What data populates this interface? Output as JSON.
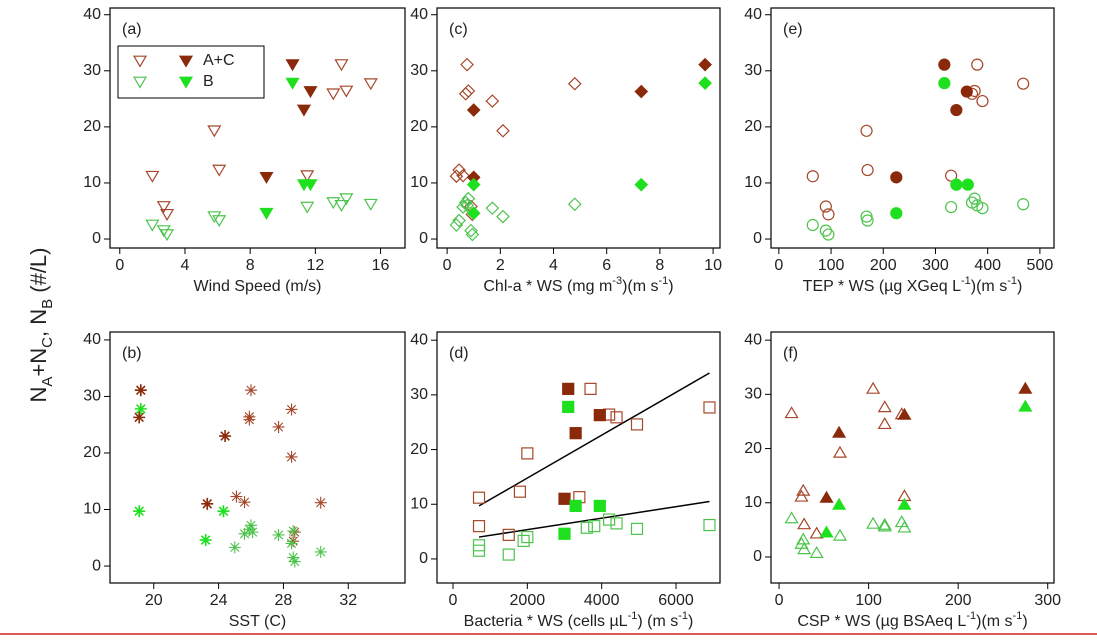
{
  "y_axis_label_parts": [
    {
      "text": "N"
    },
    {
      "text": "A",
      "sub": true
    },
    {
      "text": "+N"
    },
    {
      "text": "C",
      "sub": true
    },
    {
      "text": ",  N"
    },
    {
      "text": "B",
      "sub": true
    },
    {
      "text": " (#/L)"
    }
  ],
  "chart_data": [
    {
      "type": "scatter",
      "marker": "triangle-down",
      "panel_label": "(a)",
      "xlabel": [
        {
          "text": "Wind Speed (m/s)"
        }
      ],
      "xlim": [
        -0.6,
        17.5
      ],
      "xticks": [
        0,
        4,
        8,
        12,
        16
      ],
      "ylim": [
        -1.6,
        41.2
      ],
      "yticks": [
        0,
        10,
        20,
        30,
        40
      ],
      "legend": true,
      "series": [
        {
          "color": "#a5472a",
          "filled": false,
          "x": [
            2.0,
            2.7,
            2.9,
            5.8,
            6.1,
            11.5,
            13.1,
            13.6,
            13.9,
            15.4
          ],
          "values": [
            11.2,
            5.8,
            4.4,
            19.3,
            12.3,
            11.3,
            25.9,
            31.1,
            26.4,
            27.7
          ]
        },
        {
          "name": "A+C",
          "color": "#8b2a0a",
          "filled": true,
          "x": [
            9.0,
            10.6,
            11.3,
            11.7
          ],
          "values": [
            11.0,
            31.1,
            23.0,
            26.3
          ]
        },
        {
          "color": "#4cc44c",
          "filled": false,
          "x": [
            2.0,
            2.7,
            2.9,
            5.8,
            6.1,
            11.5,
            13.1,
            13.6,
            13.9,
            15.4
          ],
          "values": [
            2.5,
            1.5,
            0.8,
            4.0,
            3.3,
            5.7,
            6.5,
            6.0,
            7.2,
            6.2
          ]
        },
        {
          "name": "B",
          "color": "#1ee01e",
          "filled": true,
          "x": [
            9.0,
            10.6,
            11.3,
            11.7
          ],
          "values": [
            4.6,
            27.8,
            9.7,
            9.7
          ]
        }
      ]
    },
    {
      "type": "scatter",
      "marker": "asterisk",
      "panel_label": "(b)",
      "xlabel": [
        {
          "text": "SST (C)"
        }
      ],
      "xlim": [
        17.3,
        35.5
      ],
      "xticks": [
        20,
        24,
        28,
        32
      ],
      "ylim": [
        -3.0,
        41.4
      ],
      "yticks": [
        0,
        10,
        20,
        30,
        40
      ],
      "series": [
        {
          "color": "#a5472a",
          "filled": false,
          "x": [
            25.1,
            25.6,
            26.0,
            25.9,
            25.9,
            27.7,
            28.5,
            28.5,
            28.7,
            28.6,
            30.3
          ],
          "values": [
            12.3,
            11.3,
            31.1,
            26.4,
            25.9,
            24.6,
            27.7,
            19.3,
            6.0,
            4.4,
            11.2
          ]
        },
        {
          "color": "#8b2a0a",
          "filled": true,
          "x": [
            19.2,
            19.1,
            24.4,
            23.3
          ],
          "values": [
            31.1,
            26.3,
            23.0,
            11.0
          ]
        },
        {
          "color": "#4cc44c",
          "filled": false,
          "x": [
            25.0,
            25.6,
            26.0,
            25.9,
            26.1,
            27.7,
            28.6,
            28.6,
            28.7,
            28.5,
            30.3
          ],
          "values": [
            3.3,
            5.7,
            7.2,
            6.5,
            6.0,
            5.5,
            6.2,
            1.5,
            0.8,
            4.0,
            2.5
          ]
        },
        {
          "color": "#1ee01e",
          "filled": true,
          "x": [
            19.2,
            19.1,
            24.3,
            23.2
          ],
          "values": [
            27.8,
            9.7,
            9.7,
            4.6
          ]
        }
      ]
    },
    {
      "type": "scatter",
      "marker": "diamond",
      "panel_label": "(c)",
      "xlabel": [
        {
          "text": "Chl-a * WS (mg m"
        },
        {
          "text": "-3",
          "sup": true
        },
        {
          "text": ")(m s"
        },
        {
          "text": "-1",
          "sup": true
        },
        {
          "text": ")"
        }
      ],
      "xlim": [
        -0.38,
        10.26
      ],
      "xticks": [
        0,
        2,
        4,
        6,
        8,
        10
      ],
      "ylim": [
        -1.6,
        41.2
      ],
      "yticks": [
        0,
        10,
        20,
        30,
        40
      ],
      "series": [
        {
          "color": "#a5472a",
          "filled": false,
          "x": [
            0.35,
            0.9,
            0.95,
            2.1,
            0.45,
            0.6,
            0.7,
            0.75,
            0.8,
            4.8,
            1.7
          ],
          "values": [
            11.2,
            5.8,
            4.4,
            19.3,
            12.3,
            11.3,
            25.9,
            31.1,
            26.4,
            27.7,
            24.6
          ]
        },
        {
          "color": "#8b2a0a",
          "filled": true,
          "x": [
            1.0,
            1.0,
            7.3,
            9.7
          ],
          "values": [
            11.0,
            23.0,
            26.3,
            31.1
          ]
        },
        {
          "color": "#4cc44c",
          "filled": false,
          "x": [
            0.35,
            0.9,
            0.95,
            2.1,
            0.45,
            0.6,
            0.7,
            0.75,
            0.8,
            4.8,
            1.7
          ],
          "values": [
            2.5,
            1.5,
            0.8,
            4.0,
            3.3,
            5.7,
            6.5,
            6.0,
            7.2,
            6.2,
            5.5
          ]
        },
        {
          "color": "#1ee01e",
          "filled": true,
          "x": [
            1.0,
            1.0,
            7.3,
            9.7
          ],
          "values": [
            4.6,
            9.7,
            9.7,
            27.8
          ]
        }
      ]
    },
    {
      "type": "scatter",
      "marker": "square",
      "panel_label": "(d)",
      "xlabel": [
        {
          "text": "Bacteria * WS (cells µL"
        },
        {
          "text": "-1",
          "sup": true
        },
        {
          "text": ") (m s"
        },
        {
          "text": "-1",
          "sup": true
        },
        {
          "text": ")"
        }
      ],
      "xlim": [
        -430,
        7183
      ],
      "xticks": [
        0,
        2000,
        4000,
        6000
      ],
      "ylim": [
        -4.4,
        41.5
      ],
      "yticks": [
        0,
        10,
        20,
        30,
        40
      ],
      "lines": [
        {
          "color": "#000000",
          "x": [
            700,
            6900
          ],
          "y": [
            9.7,
            34.0
          ]
        },
        {
          "color": "#000000",
          "x": [
            700,
            6900
          ],
          "y": [
            4.0,
            10.5
          ]
        }
      ],
      "series": [
        {
          "color": "#a5472a",
          "filled": false,
          "x": [
            700,
            700,
            1500,
            1800,
            2000,
            3400,
            3700,
            4200,
            4400,
            4950,
            6900
          ],
          "values": [
            11.2,
            6.0,
            4.4,
            12.3,
            19.3,
            11.3,
            31.1,
            26.4,
            25.9,
            24.6,
            27.7
          ]
        },
        {
          "color": "#8b2a0a",
          "filled": true,
          "x": [
            3000,
            3100,
            3300,
            3950
          ],
          "values": [
            11.0,
            31.1,
            23.0,
            26.3
          ]
        },
        {
          "color": "#4cc44c",
          "filled": false,
          "x": [
            700,
            700,
            1500,
            1900,
            2000,
            3600,
            3800,
            4200,
            4400,
            4950,
            6900
          ],
          "values": [
            2.5,
            1.5,
            0.8,
            3.3,
            4.0,
            5.7,
            6.0,
            7.2,
            6.5,
            5.5,
            6.2
          ]
        },
        {
          "color": "#1ee01e",
          "filled": true,
          "x": [
            3000,
            3100,
            3300,
            3950
          ],
          "values": [
            4.6,
            27.8,
            9.7,
            9.7
          ]
        }
      ]
    },
    {
      "type": "scatter",
      "marker": "circle",
      "panel_label": "(e)",
      "xlabel": [
        {
          "text": "TEP * WS (µg XGeq  L"
        },
        {
          "text": "-1",
          "sup": true
        },
        {
          "text": ")(m s"
        },
        {
          "text": "-1",
          "sup": true
        },
        {
          "text": ")"
        }
      ],
      "xlim": [
        -15,
        527
      ],
      "xticks": [
        0,
        100,
        200,
        300,
        400,
        500
      ],
      "ylim": [
        -1.6,
        41.2
      ],
      "yticks": [
        0,
        10,
        20,
        30,
        40
      ],
      "series": [
        {
          "color": "#a5472a",
          "filled": false,
          "x": [
            65,
            90,
            95,
            168,
            170,
            330,
            370,
            380,
            375,
            468,
            390
          ],
          "values": [
            11.2,
            5.8,
            4.4,
            19.3,
            12.3,
            11.3,
            25.9,
            31.1,
            26.4,
            27.7,
            24.6
          ]
        },
        {
          "color": "#8b2a0a",
          "filled": true,
          "x": [
            225,
            317,
            340,
            360
          ],
          "values": [
            11.0,
            31.1,
            23.0,
            26.3
          ]
        },
        {
          "color": "#4cc44c",
          "filled": false,
          "x": [
            65,
            90,
            95,
            168,
            170,
            330,
            370,
            380,
            375,
            468,
            390
          ],
          "values": [
            2.5,
            1.5,
            0.8,
            4.0,
            3.3,
            5.7,
            6.5,
            6.0,
            7.2,
            6.2,
            5.5
          ]
        },
        {
          "color": "#1ee01e",
          "filled": true,
          "x": [
            225,
            317,
            340,
            362
          ],
          "values": [
            4.6,
            27.8,
            9.7,
            9.7
          ]
        }
      ]
    },
    {
      "type": "scatter",
      "marker": "triangle-up",
      "panel_label": "(f)",
      "xlabel": [
        {
          "text": "CSP * WS  (µg BSAeq  L"
        },
        {
          "text": "-1",
          "sup": true
        },
        {
          "text": ")(m s"
        },
        {
          "text": "-1",
          "sup": true
        },
        {
          "text": ")"
        }
      ],
      "xlim": [
        -9,
        307
      ],
      "xticks": [
        0,
        100,
        200,
        300
      ],
      "ylim": [
        -4.8,
        41.5
      ],
      "yticks": [
        0,
        10,
        20,
        30,
        40
      ],
      "series": [
        {
          "color": "#a5472a",
          "filled": false,
          "x": [
            14,
            25,
            27,
            28,
            42,
            68,
            105,
            118,
            118,
            137,
            140
          ],
          "values": [
            26.6,
            11.2,
            12.3,
            6.1,
            4.4,
            19.3,
            31.1,
            27.7,
            24.6,
            26.4,
            11.3
          ]
        },
        {
          "color": "#8b2a0a",
          "filled": true,
          "x": [
            53,
            67,
            140,
            275
          ],
          "values": [
            11.0,
            23.0,
            26.3,
            31.1
          ]
        },
        {
          "color": "#4cc44c",
          "filled": false,
          "x": [
            14,
            25,
            27,
            28,
            42,
            68,
            105,
            118,
            118,
            137,
            140
          ],
          "values": [
            7.2,
            2.5,
            3.3,
            1.5,
            0.8,
            4.0,
            6.2,
            5.7,
            6.0,
            6.5,
            5.5
          ]
        },
        {
          "color": "#1ee01e",
          "filled": true,
          "x": [
            53,
            67,
            140,
            275
          ],
          "values": [
            4.6,
            9.7,
            9.7,
            27.8
          ]
        }
      ]
    }
  ]
}
